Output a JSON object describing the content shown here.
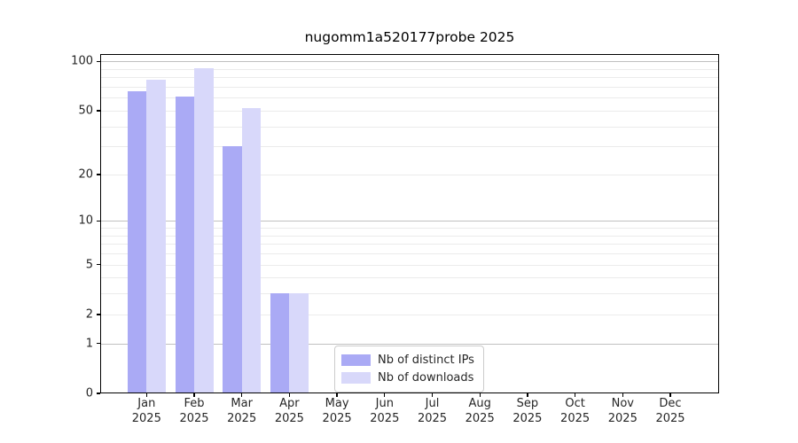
{
  "chart_data": {
    "type": "bar",
    "title": "nugomm1a520177probe 2025",
    "categories": [
      "Jan",
      "Feb",
      "Mar",
      "Apr",
      "May",
      "Jun",
      "Jul",
      "Aug",
      "Sep",
      "Oct",
      "Nov",
      "Dec"
    ],
    "x_sublabel": "2025",
    "series": [
      {
        "name": "Nb of distinct IPs",
        "color": "#aaaaf5",
        "values": [
          66,
          61,
          30,
          3,
          0,
          0,
          0,
          0,
          0,
          0,
          0,
          0
        ]
      },
      {
        "name": "Nb of downloads",
        "color": "#d8d8fa",
        "values": [
          77,
          91,
          52,
          3,
          0,
          0,
          0,
          0,
          0,
          0,
          0,
          0
        ]
      }
    ],
    "yscale": "log1p",
    "ylim": [
      0,
      111
    ],
    "yticks": [
      0,
      1,
      2,
      5,
      10,
      20,
      50,
      100
    ],
    "ytick_labels": [
      "0",
      "1",
      "2",
      "5",
      "10",
      "20",
      "50",
      "100"
    ],
    "grid": {
      "major_values": [
        1,
        10,
        100
      ],
      "minor_values": [
        2,
        3,
        4,
        5,
        6,
        7,
        8,
        9,
        20,
        30,
        40,
        50,
        60,
        70,
        80,
        90
      ],
      "major_color": "#c0c0c0",
      "minor_color": "#ebebeb"
    },
    "legend_position": "lower-center",
    "axis_color": "#000000",
    "text_color": "#262626",
    "background_color": "#ffffff"
  }
}
